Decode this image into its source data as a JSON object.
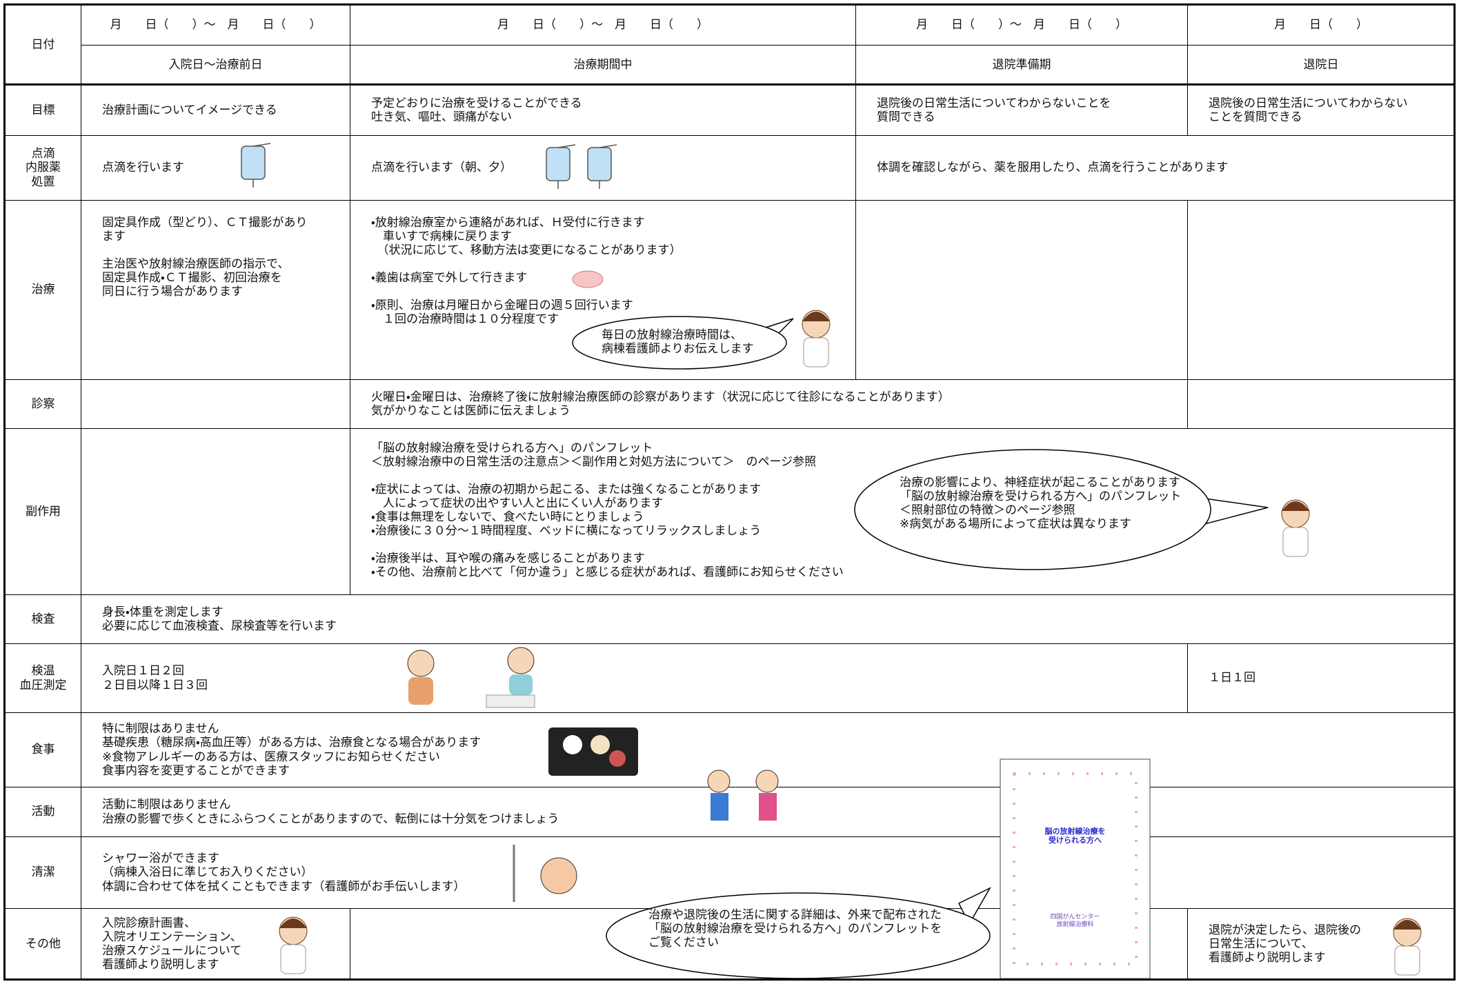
{
  "header": {
    "date_label": "日付",
    "dates": [
      "月　　日（　　）～　月　　日（　　）",
      "月　　日（　　）～　月　　日（　　）",
      "月　　日（　　）～　月　　日（　　）",
      "月　　日（　　）"
    ],
    "phases": [
      "入院日～治療前日",
      "治療期間中",
      "退院準備期",
      "退院日"
    ]
  },
  "rows": [
    {
      "label": "目標",
      "cells": [
        "治療計画についてイメージできる",
        "予定どおりに治療を受けることができる\n吐き気、嘔吐、頭痛がない",
        "退院後の日常生活についてわからないことを\n質問できる",
        "退院後の日常生活についてわからない\nことを質問できる"
      ]
    },
    {
      "label": "点滴\n内服薬\n処置",
      "cells": [
        "点滴を行います",
        "点滴を行います（朝、夕）",
        "体調を確認しながら、薬を服用したり、点滴を行うことがあります"
      ]
    },
    {
      "label": "治療",
      "cells": [
        "固定具作成（型どり）、ＣＴ撮影があり\nます\n\n主治医や放射線治療医師の指示で、\n固定具作成・ＣＴ撮影、初回治療を\n同日に行う場合があります",
        "・放射線治療室から連絡があれば、Ｈ受付に行きます\n　車いすで病棟に戻ります\n　（状況に応じて、移動方法は変更になることがあります）\n\n・義歯は病室で外して行きます\n\n・原則、治療は月曜日から金曜日の週５回行います\n　１回の治療時間は１０分程度です"
      ]
    },
    {
      "label": "診察",
      "cells": [
        "火曜日・金曜日は、治療終了後に放射線治療医師の診察があります（状況に応じて往診になることがあります）\n気がかりなことは医師に伝えましょう"
      ]
    },
    {
      "label": "副作用",
      "cells": [
        "「脳の放射線治療を受けられる方へ」のパンフレット\n＜放射線治療中の日常生活の注意点＞＜副作用と対処方法について＞　のページ参照\n\n・症状によっては、治療の初期から起こる、または強くなることがあります\n　人によって症状の出やすい人と出にくい人があります\n・食事は無理をしないで、食べたい時にとりましょう\n・治療後に３０分～１時間程度、ベッドに横になってリラックスしましょう\n\n・治療後半は、耳や喉の痛みを感じることがあります\n・その他、治療前と比べて「何か違う」と感じる症状があれば、看護師にお知らせください"
      ]
    },
    {
      "label": "検査",
      "cells": [
        "身長・体重を測定します\n必要に応じて血液検査、尿検査等を行います"
      ]
    },
    {
      "label": "検温\n血圧測定",
      "cells": [
        "入院日１日２回\n２日目以降１日３回",
        "１日１回"
      ]
    },
    {
      "label": "食事",
      "cells": [
        "特に制限はありません\n基礎疾患（糖尿病・高血圧等）がある方は、治療食となる場合があります\n※食物アレルギーのある方は、医療スタッフにお知らせください\n食事内容を変更することができます"
      ]
    },
    {
      "label": "活動",
      "cells": [
        "活動に制限はありません\n治療の影響で歩くときにふらつくことがありますので、転倒には十分気をつけましょう"
      ]
    },
    {
      "label": "清潔",
      "cells": [
        "シャワー浴ができます\n（病棟入浴日に準じてお入りください）\n体調に合わせて体を拭くこともできます（看護師がお手伝いします）"
      ]
    },
    {
      "label": "その他",
      "cells": [
        "入院診療計画書、\n入院オリエンテーション、\n治療スケジュールについて\n看護師より説明します",
        "退院が決定したら、退院後の\n日常生活について、\n看護師より説明します"
      ]
    }
  ],
  "bubbles": [
    {
      "text": "毎日の放射線治療時間は、\n病棟看護師よりお伝えします"
    },
    {
      "text": "治療の影響により、神経症状が起こることがあります\n「脳の放射線治療を受けられる方へ」のパンフレット\n＜照射部位の特徴＞のページ参照\n※病気がある場所によって症状は異なります"
    },
    {
      "text": "治療や退院後の生活に関する詳細は、外来で配布された\n「脳の放射線治療を受けられる方へ」のパンフレットを\nご覧ください"
    }
  ],
  "pamphlet": {
    "title": "脳の放射線治療を\n受けられる方へ",
    "publisher": "四国がんセンター\n放射線治療科"
  }
}
